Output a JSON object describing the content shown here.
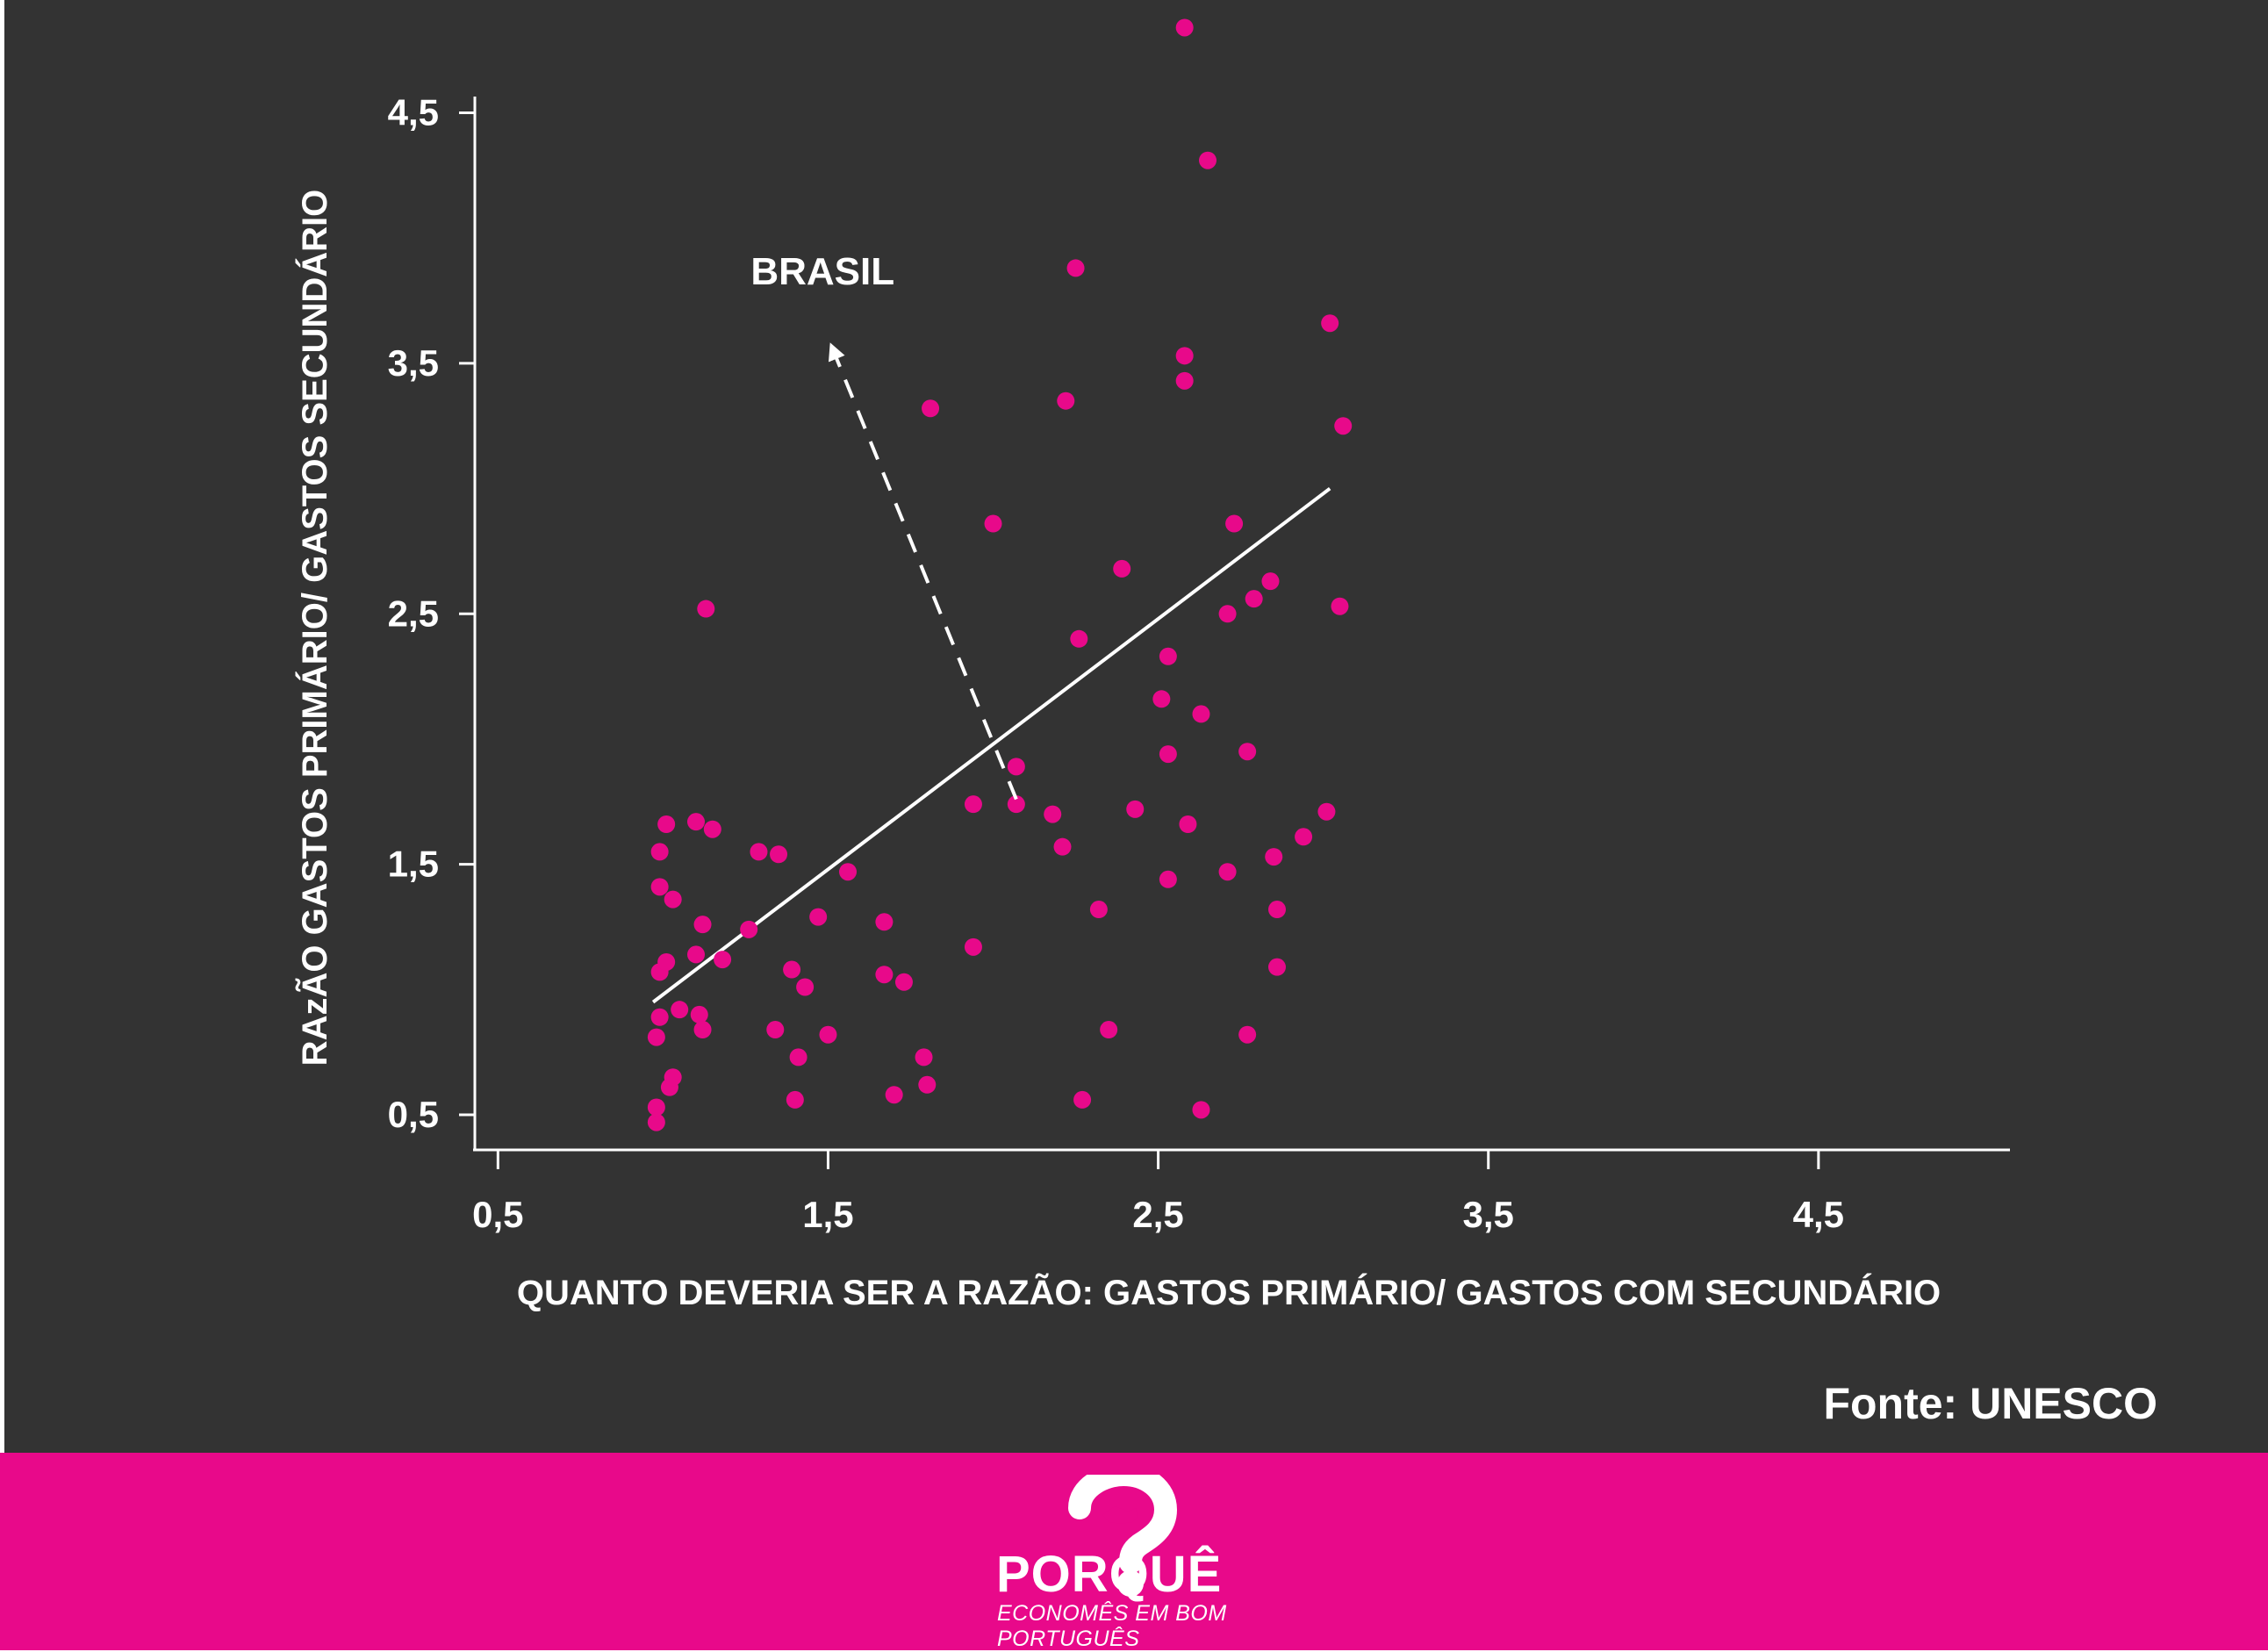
{
  "chart_data": {
    "type": "scatter",
    "xlabel": "QUANTO DEVERIA SER A RAZÃO: GASTOS PRIMÁRIO/  GASTOS COM SECUNDÁRIO",
    "ylabel": "RAzÃO GASTOS  PRIMÁRIO/ GASTOS SECUNDÁRIO",
    "xlim": [
      0.43,
      5.08
    ],
    "ylim": [
      0.36,
      4.74
    ],
    "xticks": [
      "0,5",
      "1,5",
      "2,5",
      "3,5",
      "4,5"
    ],
    "yticks": [
      "0,5",
      "1,5",
      "2,5",
      "3,5",
      "4,5"
    ],
    "xtick_values": [
      0.5,
      1.5,
      2.5,
      3.5,
      4.5
    ],
    "ytick_values": [
      0.5,
      1.5,
      2.5,
      3.5,
      4.5
    ],
    "grid": false,
    "color": "#e8098a",
    "points": [
      [
        0.98,
        0.47
      ],
      [
        0.98,
        0.53
      ],
      [
        0.98,
        0.81
      ],
      [
        0.99,
        0.89
      ],
      [
        0.99,
        1.07
      ],
      [
        0.99,
        1.41
      ],
      [
        0.99,
        1.55
      ],
      [
        1.01,
        1.66
      ],
      [
        1.01,
        1.11
      ],
      [
        1.02,
        0.61
      ],
      [
        1.03,
        1.36
      ],
      [
        1.03,
        0.65
      ],
      [
        1.05,
        0.92
      ],
      [
        1.1,
        1.14
      ],
      [
        1.1,
        1.67
      ],
      [
        1.11,
        0.9
      ],
      [
        1.12,
        1.26
      ],
      [
        1.12,
        0.84
      ],
      [
        1.13,
        2.52
      ],
      [
        1.15,
        1.64
      ],
      [
        1.18,
        1.12
      ],
      [
        1.26,
        1.24
      ],
      [
        1.29,
        1.55
      ],
      [
        1.34,
        0.84
      ],
      [
        1.35,
        1.54
      ],
      [
        1.39,
        1.08
      ],
      [
        1.4,
        0.56
      ],
      [
        1.41,
        0.73
      ],
      [
        1.43,
        1.01
      ],
      [
        1.47,
        1.29
      ],
      [
        1.5,
        0.82
      ],
      [
        1.56,
        1.47
      ],
      [
        1.67,
        1.27
      ],
      [
        1.67,
        1.06
      ],
      [
        1.7,
        0.58
      ],
      [
        1.73,
        1.03
      ],
      [
        1.79,
        0.73
      ],
      [
        1.8,
        0.62
      ],
      [
        1.81,
        3.32
      ],
      [
        1.94,
        1.17
      ],
      [
        1.94,
        1.74
      ],
      [
        2.0,
        2.86
      ],
      [
        2.07,
        1.74
      ],
      [
        2.07,
        1.89
      ],
      [
        2.18,
        1.7
      ],
      [
        2.21,
        1.57
      ],
      [
        2.22,
        3.35
      ],
      [
        2.25,
        3.88
      ],
      [
        2.26,
        2.4
      ],
      [
        2.27,
        0.56
      ],
      [
        2.32,
        1.32
      ],
      [
        2.35,
        0.84
      ],
      [
        2.39,
        2.68
      ],
      [
        2.43,
        1.72
      ],
      [
        2.51,
        2.16
      ],
      [
        2.53,
        2.33
      ],
      [
        2.53,
        1.94
      ],
      [
        2.53,
        1.44
      ],
      [
        2.58,
        4.84
      ],
      [
        2.58,
        3.53
      ],
      [
        2.58,
        3.43
      ],
      [
        2.59,
        1.66
      ],
      [
        2.63,
        2.1
      ],
      [
        2.63,
        0.52
      ],
      [
        2.65,
        4.31
      ],
      [
        2.71,
        2.5
      ],
      [
        2.71,
        1.47
      ],
      [
        2.73,
        2.86
      ],
      [
        2.77,
        1.95
      ],
      [
        2.77,
        0.82
      ],
      [
        2.79,
        2.56
      ],
      [
        2.84,
        2.63
      ],
      [
        2.85,
        1.53
      ],
      [
        2.86,
        1.32
      ],
      [
        2.86,
        1.09
      ],
      [
        2.94,
        1.61
      ],
      [
        3.01,
        1.71
      ],
      [
        3.02,
        3.66
      ],
      [
        3.05,
        2.53
      ],
      [
        3.06,
        3.25
      ]
    ],
    "trendline": {
      "x": [
        0.97,
        3.02
      ],
      "y": [
        0.95,
        3.0
      ]
    },
    "annotation": {
      "text": "BRASIL",
      "arrow_from": [
        2.07,
        1.76
      ],
      "arrow_to": [
        1.51,
        3.57
      ]
    }
  },
  "source": "Fonte: UNESCO",
  "logo": {
    "word": "PORQUÊ",
    "tagline": "ECONOMÊS EM BOM PORTUGUÊS"
  },
  "colors": {
    "background": "#333333",
    "accent": "#e8098a",
    "text": "#ffffff"
  }
}
